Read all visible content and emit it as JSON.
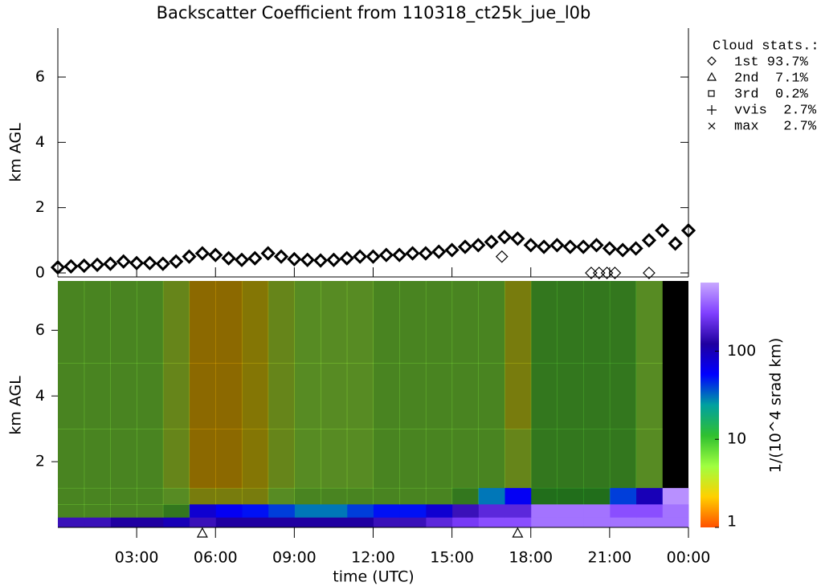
{
  "chart_data": [
    {
      "type": "scatter",
      "title": "Backscatter Coefficient from 110318_ct25k_jue_l0b",
      "ylabel": "km AGL",
      "xlim": [
        0,
        24
      ],
      "ylim": [
        0,
        7.5
      ],
      "yticks": [
        0,
        2,
        4,
        6
      ],
      "series": [
        {
          "color": "#000000",
          "x": [
            0,
            0.5,
            1,
            1.5,
            2,
            2.5,
            3,
            3.5,
            4,
            4.5,
            5,
            5.5,
            6,
            6.5,
            7,
            7.5,
            8,
            8.5,
            9,
            9.5,
            10,
            10.5,
            11,
            11.5,
            12,
            12.5,
            13,
            13.5,
            14,
            14.5,
            15,
            15.5,
            16,
            16.5,
            17,
            17.5,
            18,
            18.5,
            19,
            19.5,
            20,
            20.5,
            21,
            21.5,
            22,
            22.5,
            23,
            23.5,
            24
          ],
          "y": [
            0.17,
            0.2,
            0.22,
            0.25,
            0.28,
            0.35,
            0.3,
            0.3,
            0.28,
            0.35,
            0.5,
            0.6,
            0.55,
            0.45,
            0.4,
            0.45,
            0.6,
            0.5,
            0.42,
            0.4,
            0.38,
            0.4,
            0.45,
            0.5,
            0.5,
            0.55,
            0.55,
            0.6,
            0.6,
            0.65,
            0.7,
            0.8,
            0.85,
            0.95,
            1.1,
            1.05,
            0.85,
            0.8,
            0.85,
            0.8,
            0.8,
            0.85,
            0.75,
            0.7,
            0.75,
            1.0,
            1.3,
            0.9,
            1.3
          ]
        },
        {
          "color": "#000000",
          "x": [
            16.9,
            20.3,
            20.6,
            20.9,
            21.2,
            22.5
          ],
          "y": [
            0.5,
            0,
            0,
            0,
            0,
            0
          ]
        }
      ],
      "legend": {
        "title": "Cloud stats.:",
        "entries": [
          "1st 93.7%",
          "2nd  7.1%",
          "3rd  0.2%",
          "vvis  2.7%",
          "max   2.7%"
        ]
      }
    },
    {
      "type": "heatmap",
      "ylabel": "km AGL",
      "xlabel": "time (UTC)",
      "xlim": [
        0,
        24
      ],
      "ylim": [
        0,
        7.5
      ],
      "yticks": [
        2,
        4,
        6
      ],
      "xticks": [
        {
          "value": 3,
          "label": "03:00"
        },
        {
          "value": 6,
          "label": "06:00"
        },
        {
          "value": 9,
          "label": "09:00"
        },
        {
          "value": 12,
          "label": "12:00"
        },
        {
          "value": 15,
          "label": "15:00"
        },
        {
          "value": 18,
          "label": "18:00"
        },
        {
          "value": 21,
          "label": "21:00"
        },
        {
          "value": 24,
          "label": "00:00"
        }
      ],
      "heatmap": {
        "x_edges": [
          0,
          1,
          2,
          3,
          4,
          5,
          6,
          7,
          8,
          9,
          10,
          11,
          12,
          13,
          14,
          15,
          16,
          17,
          18,
          19,
          20,
          21,
          22,
          23,
          24
        ],
        "y_edges": [
          0,
          0.3,
          0.7,
          1.2,
          3,
          5,
          7.5
        ],
        "values": [
          [
            150,
            6,
            6,
            6,
            6,
            6
          ],
          [
            150,
            6,
            6,
            6,
            6,
            6
          ],
          [
            120,
            6,
            6,
            6,
            6,
            6
          ],
          [
            120,
            6,
            6,
            6,
            6,
            6
          ],
          [
            100,
            8,
            5,
            4,
            4,
            4
          ],
          [
            150,
            80,
            3,
            2,
            2,
            2
          ],
          [
            120,
            60,
            3,
            2,
            2,
            2
          ],
          [
            120,
            50,
            3,
            2.5,
            2.5,
            2.5
          ],
          [
            120,
            40,
            5,
            4,
            4,
            4
          ],
          [
            120,
            30,
            6,
            5,
            5,
            5
          ],
          [
            120,
            30,
            6,
            5,
            5,
            5
          ],
          [
            120,
            40,
            6,
            5,
            5,
            5
          ],
          [
            150,
            50,
            6,
            6,
            6,
            6
          ],
          [
            150,
            50,
            6,
            6,
            6,
            6
          ],
          [
            200,
            80,
            6,
            6,
            6,
            6
          ],
          [
            250,
            150,
            8,
            6,
            6,
            6
          ],
          [
            300,
            200,
            30,
            6,
            6,
            6
          ],
          [
            300,
            200,
            60,
            4,
            3,
            3
          ],
          [
            400,
            400,
            10,
            8,
            8,
            8
          ],
          [
            400,
            400,
            10,
            8,
            8,
            8
          ],
          [
            400,
            400,
            10,
            8,
            8,
            8
          ],
          [
            400,
            300,
            40,
            8,
            8,
            8
          ],
          [
            400,
            300,
            100,
            5,
            5,
            5
          ],
          [
            400,
            400,
            500,
            null,
            null,
            null
          ]
        ]
      },
      "markers": {
        "x": [
          5.5,
          17.5
        ]
      },
      "colorbar": {
        "label": "1/(10^4 srad km)",
        "scale": "log",
        "clim": [
          1,
          600
        ],
        "ticks": [
          1,
          10,
          100
        ],
        "colors": [
          "#ff5000",
          "#ffd000",
          "#a0ff40",
          "#30c030",
          "#00a0a0",
          "#0000ff",
          "#2000a0",
          "#8040ff",
          "#c8a8ff"
        ]
      }
    }
  ]
}
